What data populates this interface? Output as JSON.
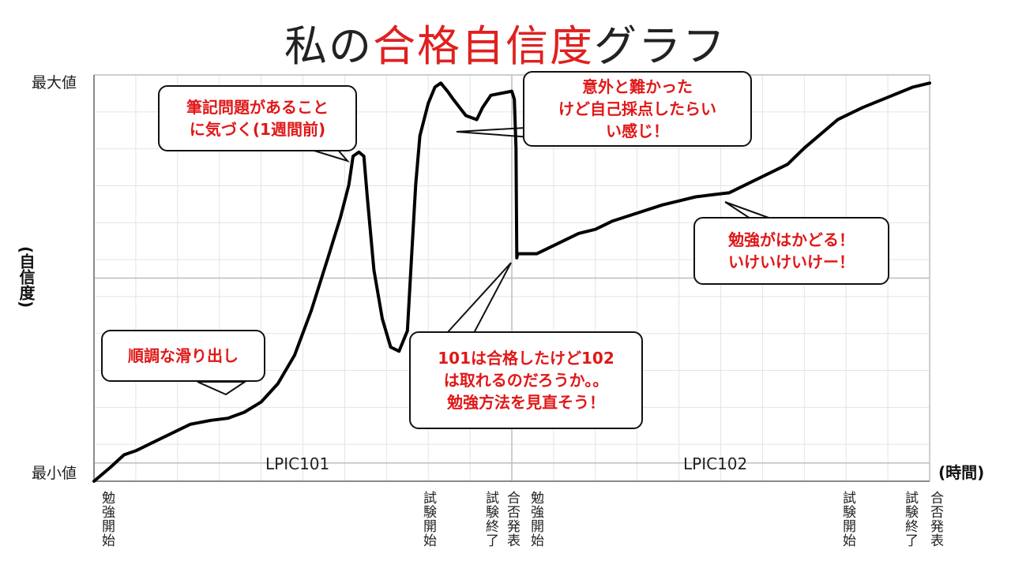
{
  "title": {
    "pre": "私の",
    "highlight": "合格自信度",
    "post": "グラフ",
    "highlight_color": "#e02020"
  },
  "chart_data": {
    "type": "line",
    "title": "私の合格自信度グラフ",
    "xlabel": "(時間)",
    "ylabel": "(自信度)",
    "y_tick_labels": {
      "max": "最大値",
      "min": "最小値"
    },
    "ylim": [
      0,
      100
    ],
    "xlim": [
      0,
      100
    ],
    "grid": true,
    "sections": [
      {
        "label": "LPIC101",
        "range": [
          0,
          50
        ]
      },
      {
        "label": "LPIC102",
        "range": [
          50,
          100
        ]
      }
    ],
    "events": [
      {
        "label": "勉強開始",
        "x": 0.5
      },
      {
        "label": "試験開始",
        "x": 39
      },
      {
        "label": "試験終了",
        "x": 47
      },
      {
        "label": "合否発表",
        "x": 49.5
      },
      {
        "label": "勉強開始",
        "x": 53
      },
      {
        "label": "試験開始",
        "x": 89.5
      },
      {
        "label": "試験終了",
        "x": 97
      },
      {
        "label": "合否発表",
        "x": 100.5
      }
    ],
    "series": [
      {
        "line_color": "#000000",
        "points": [
          [
            0,
            0
          ],
          [
            2,
            3.5
          ],
          [
            3.6,
            6.5
          ],
          [
            5,
            7.5
          ],
          [
            8,
            10.5
          ],
          [
            11.5,
            14
          ],
          [
            14,
            15
          ],
          [
            16,
            15.5
          ],
          [
            18,
            17
          ],
          [
            20,
            19.5
          ],
          [
            22,
            24
          ],
          [
            24,
            31
          ],
          [
            26,
            42
          ],
          [
            28,
            55
          ],
          [
            29.5,
            65
          ],
          [
            30.5,
            73
          ],
          [
            31,
            80
          ],
          [
            31.7,
            81
          ],
          [
            32.3,
            80
          ],
          [
            32.7,
            70
          ],
          [
            33.5,
            52
          ],
          [
            34.5,
            40
          ],
          [
            35.5,
            33
          ],
          [
            36.5,
            32
          ],
          [
            37.5,
            37
          ],
          [
            38,
            55
          ],
          [
            38.5,
            73
          ],
          [
            39,
            85
          ],
          [
            40,
            93
          ],
          [
            40.8,
            97
          ],
          [
            41.5,
            98
          ],
          [
            42.3,
            96
          ],
          [
            43,
            94
          ],
          [
            44.5,
            90
          ],
          [
            45.8,
            89
          ],
          [
            46.5,
            92
          ],
          [
            47.5,
            95
          ],
          [
            50,
            96
          ],
          [
            50.3,
            94
          ],
          [
            50.5,
            82
          ],
          [
            50.6,
            55
          ],
          [
            50.7,
            56
          ],
          [
            53,
            56
          ],
          [
            55,
            58
          ],
          [
            58,
            61
          ],
          [
            60,
            62
          ],
          [
            62,
            64
          ],
          [
            65,
            66
          ],
          [
            68,
            68
          ],
          [
            70,
            69
          ],
          [
            72,
            70
          ],
          [
            74,
            70.5
          ],
          [
            76,
            71
          ],
          [
            79,
            74
          ],
          [
            83,
            78
          ],
          [
            85,
            82
          ],
          [
            89,
            89
          ],
          [
            92,
            92
          ],
          [
            95,
            94.5
          ],
          [
            98,
            97
          ],
          [
            100,
            98
          ]
        ]
      }
    ],
    "annotations": [
      {
        "text": "順調な滑り出し",
        "x": 16,
        "y": 16
      },
      {
        "text": "筆記問題があること\nに気づく(1週間前)",
        "x": 31,
        "y": 80
      },
      {
        "text": "意外と難かった\nけど自己採点したらい\nい感じ！",
        "x": 43,
        "y": 90
      },
      {
        "text": "101は合格したけど102\nは取れるのだろうか。。\n勉強方法を見直そう！",
        "x": 50,
        "y": 56
      },
      {
        "text": "勉強がはかどる！\nいけいけいけー！",
        "x": 76,
        "y": 70
      }
    ]
  }
}
